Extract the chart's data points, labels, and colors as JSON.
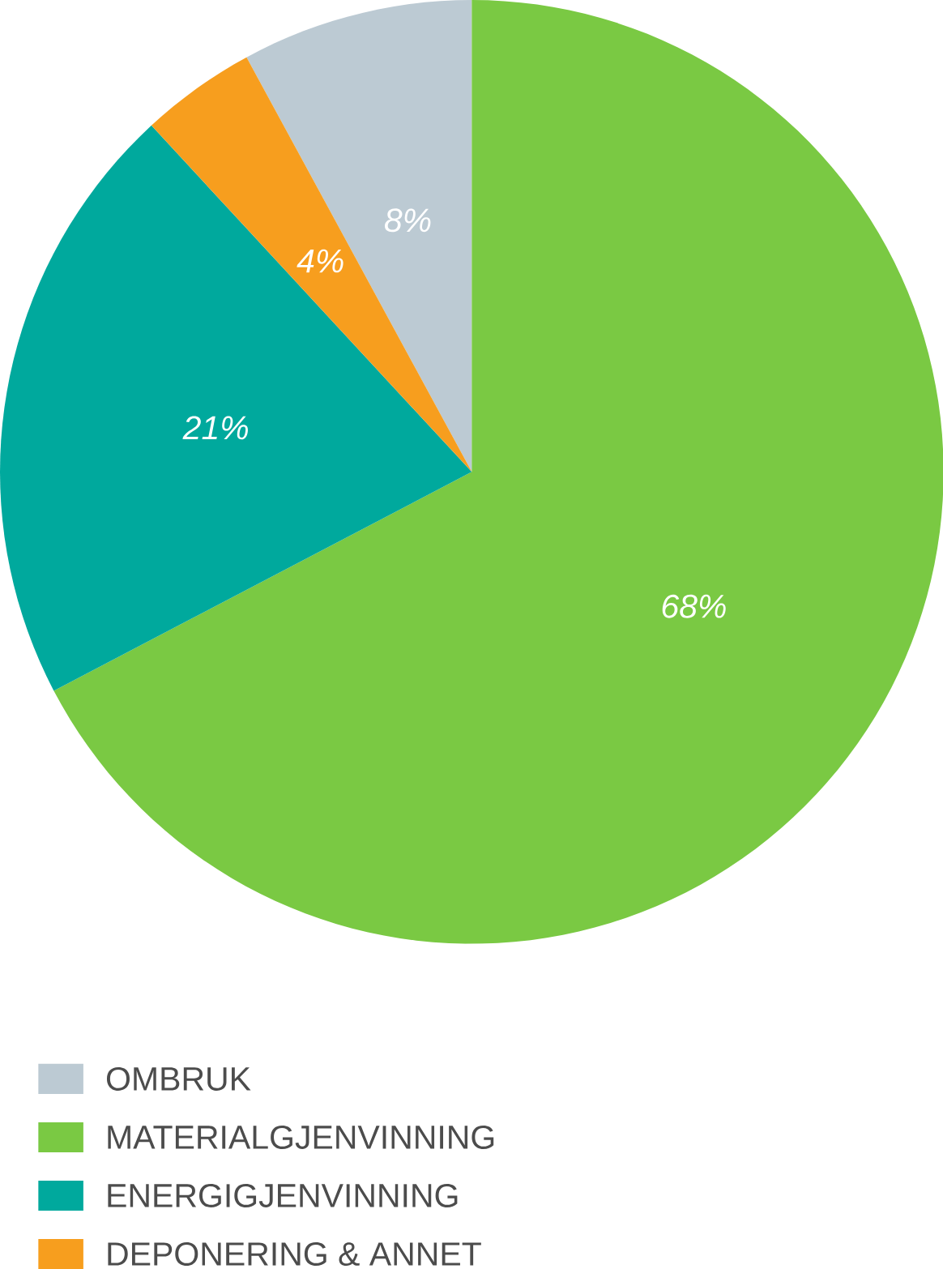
{
  "chart_data": {
    "type": "pie",
    "categories": [
      "OMBRUK",
      "MATERIALGJENVINNING",
      "ENERGIGJENVINNING",
      "DEPONERING & ANNET"
    ],
    "values": [
      8,
      68,
      21,
      4
    ],
    "value_labels": [
      "8%",
      "68%",
      "21%",
      "4%"
    ],
    "colors": [
      "#bccad3",
      "#7ac943",
      "#00a99d",
      "#f79e1e"
    ],
    "legend": "bottom left"
  }
}
